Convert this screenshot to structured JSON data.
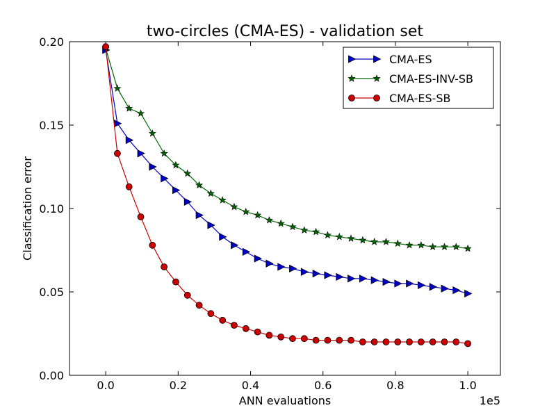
{
  "chart_data": {
    "type": "line",
    "title": "two-circles (CMA-ES) - validation set",
    "xlabel": "ANN evaluations",
    "ylabel": "Classification error",
    "x_offset_label": "1e5",
    "xlim": [
      -0.1,
      1.09
    ],
    "ylim": [
      0.0,
      0.2
    ],
    "xticks": [
      0.0,
      0.2,
      0.4,
      0.6,
      0.8,
      1.0
    ],
    "xtick_labels": [
      "0.0",
      "0.2",
      "0.4",
      "0.6",
      "0.8",
      "1.0"
    ],
    "yticks": [
      0.0,
      0.05,
      0.1,
      0.15,
      0.2
    ],
    "ytick_labels": [
      "0.00",
      "0.05",
      "0.10",
      "0.15",
      "0.20"
    ],
    "grid": false,
    "legend_position": "top-right",
    "x": [
      0.0,
      0.0323,
      0.0645,
      0.0968,
      0.129,
      0.1613,
      0.1935,
      0.2258,
      0.2581,
      0.2903,
      0.3226,
      0.3548,
      0.3871,
      0.4194,
      0.4516,
      0.4839,
      0.5161,
      0.5484,
      0.5806,
      0.6129,
      0.6452,
      0.6774,
      0.7097,
      0.7419,
      0.7742,
      0.8065,
      0.8387,
      0.871,
      0.9032,
      0.9355,
      0.9677,
      1.0
    ],
    "series": [
      {
        "name": "CMA-ES",
        "color": "#0000cc",
        "marker": "triangle-right",
        "values": [
          0.195,
          0.151,
          0.141,
          0.133,
          0.125,
          0.118,
          0.111,
          0.104,
          0.096,
          0.09,
          0.083,
          0.078,
          0.074,
          0.07,
          0.067,
          0.065,
          0.064,
          0.062,
          0.061,
          0.06,
          0.059,
          0.058,
          0.058,
          0.057,
          0.056,
          0.055,
          0.055,
          0.054,
          0.053,
          0.052,
          0.051,
          0.049
        ]
      },
      {
        "name": "CMA-ES-INV-SB",
        "color": "#006600",
        "marker": "star",
        "values": [
          0.196,
          0.172,
          0.16,
          0.157,
          0.145,
          0.133,
          0.126,
          0.121,
          0.114,
          0.109,
          0.105,
          0.101,
          0.098,
          0.096,
          0.093,
          0.091,
          0.089,
          0.087,
          0.086,
          0.084,
          0.083,
          0.082,
          0.081,
          0.08,
          0.08,
          0.079,
          0.078,
          0.078,
          0.077,
          0.077,
          0.077,
          0.076
        ]
      },
      {
        "name": "CMA-ES-SB",
        "color": "#cc0000",
        "marker": "circle",
        "values": [
          0.197,
          0.133,
          0.113,
          0.095,
          0.078,
          0.065,
          0.056,
          0.048,
          0.042,
          0.037,
          0.033,
          0.03,
          0.028,
          0.026,
          0.024,
          0.023,
          0.022,
          0.022,
          0.021,
          0.021,
          0.021,
          0.021,
          0.02,
          0.02,
          0.02,
          0.02,
          0.02,
          0.02,
          0.02,
          0.02,
          0.02,
          0.019
        ]
      }
    ]
  }
}
